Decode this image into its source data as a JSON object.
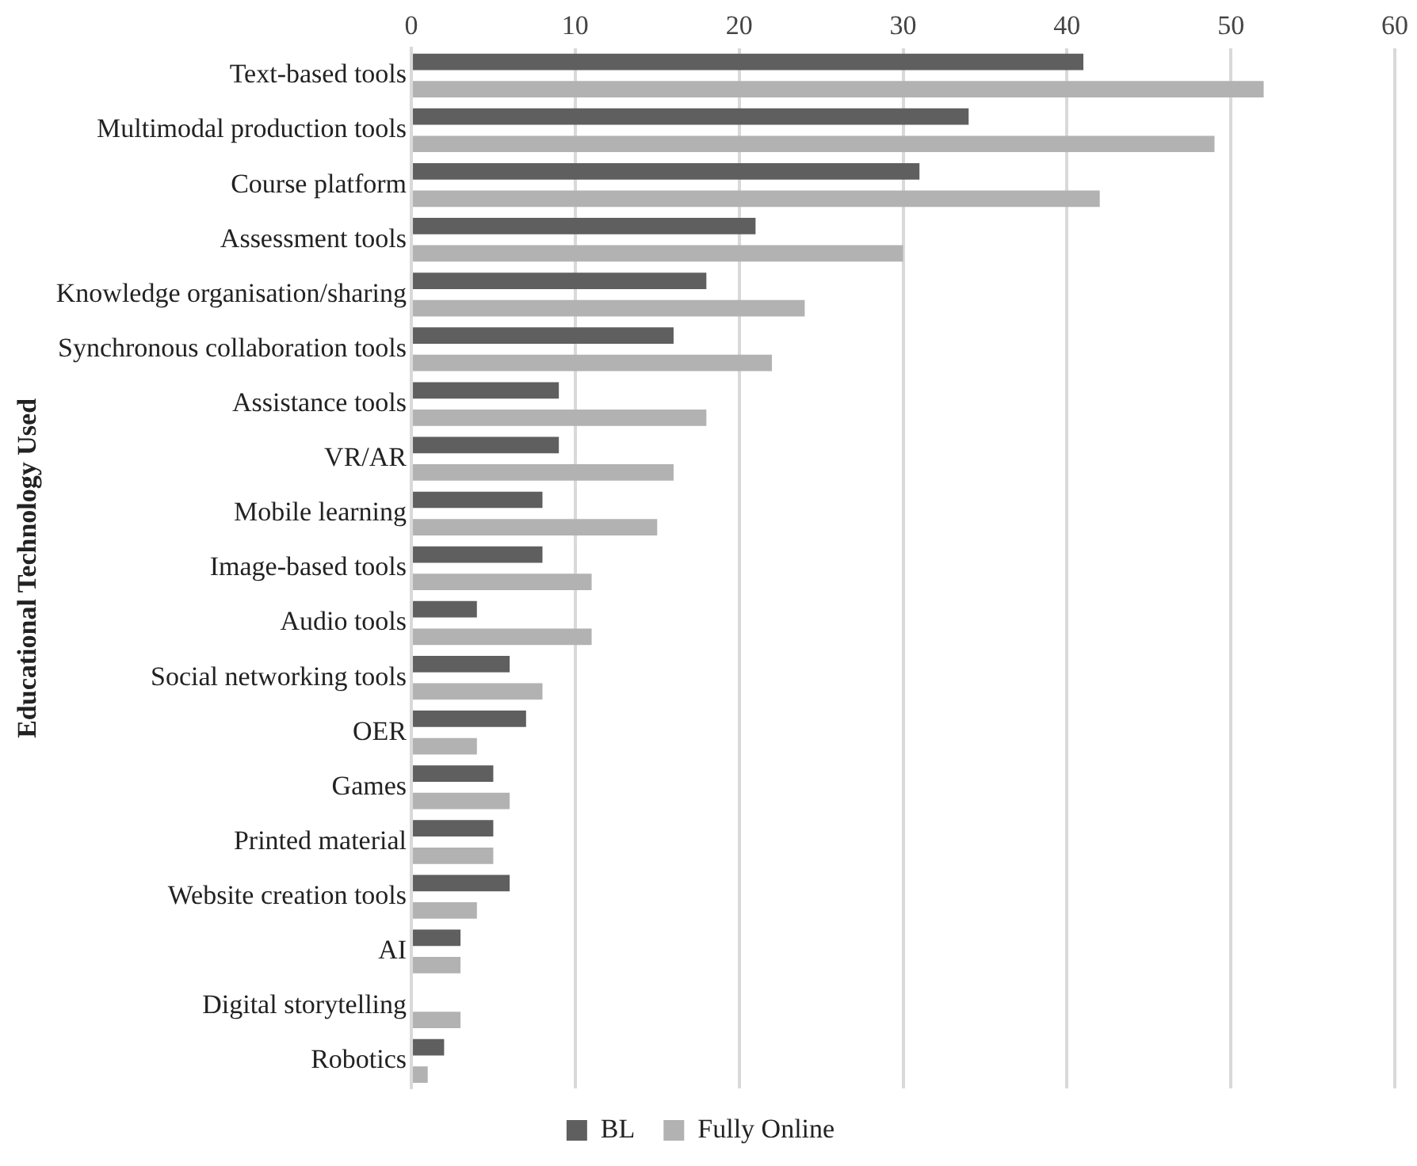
{
  "chart_data": {
    "type": "bar",
    "orientation": "horizontal",
    "ylabel": "Educational Technology Used",
    "categories": [
      "Text-based tools",
      "Multimodal production tools",
      "Course platform",
      "Assessment tools",
      "Knowledge organisation/sharing",
      "Synchronous collaboration tools",
      "Assistance tools",
      "VR/AR",
      "Mobile learning",
      "Image-based tools",
      "Audio tools",
      "Social networking tools",
      "OER",
      "Games",
      "Printed material",
      "Website creation tools",
      "AI",
      "Digital storytelling",
      "Robotics"
    ],
    "series": [
      {
        "name": "BL",
        "color": "#5f5f5f",
        "values": [
          41,
          34,
          31,
          21,
          18,
          16,
          9,
          9,
          8,
          8,
          4,
          6,
          7,
          5,
          5,
          6,
          3,
          0,
          2
        ]
      },
      {
        "name": "Fully Online",
        "color": "#b2b2b2",
        "values": [
          52,
          49,
          42,
          30,
          24,
          22,
          18,
          16,
          15,
          11,
          11,
          8,
          4,
          6,
          5,
          4,
          3,
          3,
          1
        ]
      }
    ],
    "xlim": [
      0,
      60
    ],
    "xticks": [
      0,
      10,
      20,
      30,
      40,
      50,
      60
    ],
    "grid": "x",
    "legend": "bottom"
  }
}
